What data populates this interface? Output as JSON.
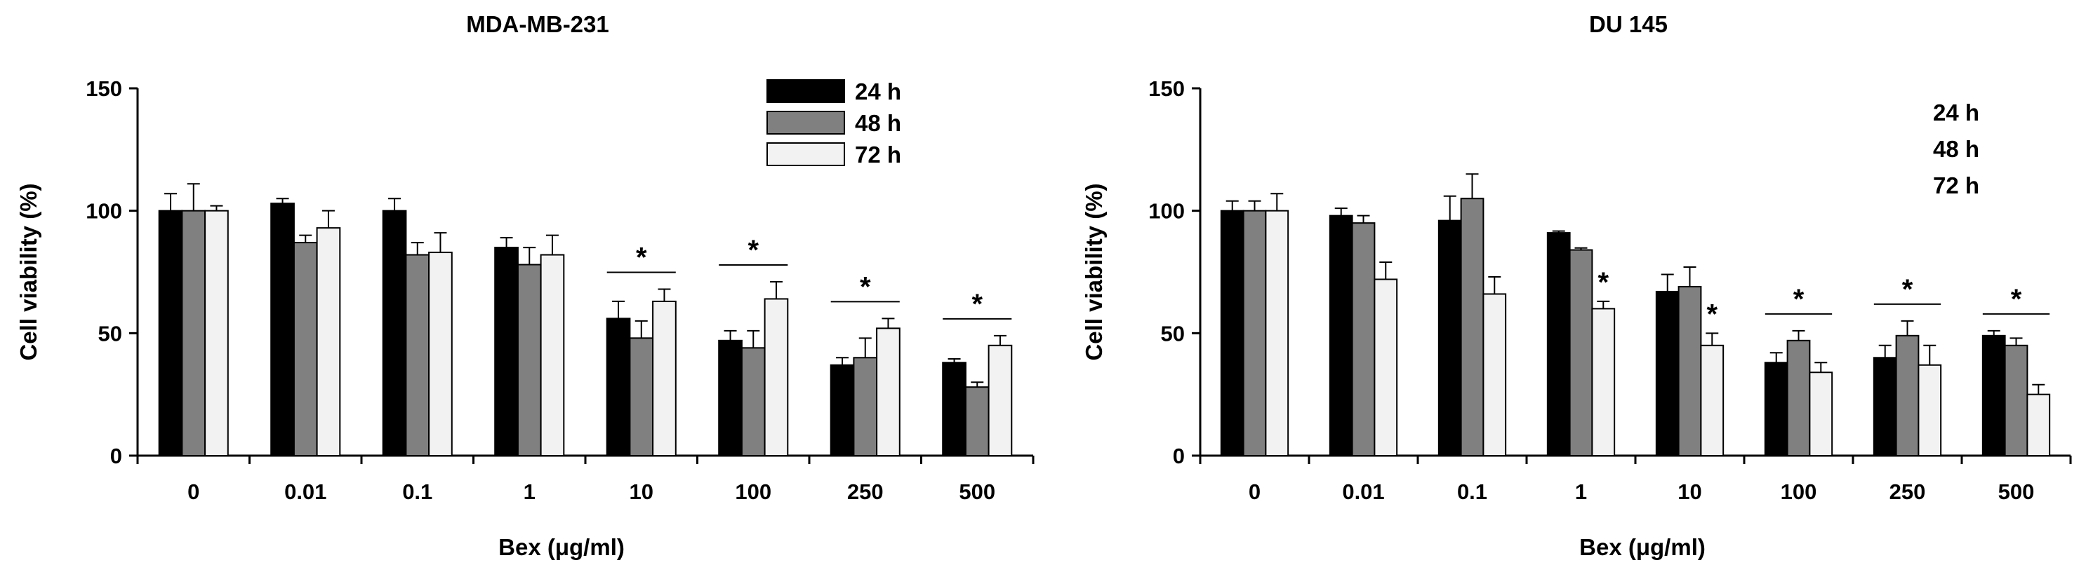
{
  "chart_data": [
    {
      "type": "bar",
      "title": "MDA-MB-231",
      "xlabel": "Bex (μg/ml)",
      "ylabel": "Cell viability (%)",
      "ylim": [
        0,
        150
      ],
      "yticks": [
        0,
        50,
        100,
        150
      ],
      "categories": [
        "0",
        "0.01",
        "0.1",
        "1",
        "10",
        "100",
        "250",
        "500"
      ],
      "legend_position": "top-right",
      "show_legend_swatches": true,
      "series": [
        {
          "name": "24 h",
          "color": "#000000",
          "values": [
            100,
            103,
            100,
            85,
            56,
            47,
            37,
            38
          ],
          "errors": [
            7,
            2,
            5,
            4,
            7,
            4,
            3,
            1.5
          ]
        },
        {
          "name": "48 h",
          "color": "#808080",
          "values": [
            100,
            87,
            82,
            78,
            48,
            44,
            40,
            28
          ],
          "errors": [
            11,
            3,
            5,
            7,
            7,
            7,
            8,
            2
          ]
        },
        {
          "name": "72 h",
          "color": "#f2f2f2",
          "values": [
            100,
            93,
            83,
            82,
            63,
            64,
            52,
            45
          ],
          "errors": [
            2,
            7,
            8,
            8,
            5,
            7,
            4,
            4
          ]
        }
      ],
      "significance": [
        {
          "categories": [
            "10"
          ],
          "label": "*",
          "style": "bracket"
        },
        {
          "categories": [
            "100"
          ],
          "label": "*",
          "style": "bracket"
        },
        {
          "categories": [
            "250"
          ],
          "label": "*",
          "style": "bracket"
        },
        {
          "categories": [
            "500"
          ],
          "label": "*",
          "style": "bracket"
        }
      ]
    },
    {
      "type": "bar",
      "title": "DU 145",
      "xlabel": "Bex (μg/ml)",
      "ylabel": "Cell viability (%)",
      "ylim": [
        0,
        150
      ],
      "yticks": [
        0,
        50,
        100,
        150
      ],
      "categories": [
        "0",
        "0.01",
        "0.1",
        "1",
        "10",
        "100",
        "250",
        "500"
      ],
      "legend_position": "top-right",
      "show_legend_swatches": false,
      "series": [
        {
          "name": "24 h",
          "color": "#000000",
          "values": [
            100,
            98,
            96,
            91,
            67,
            38,
            40,
            49
          ],
          "errors": [
            4,
            3,
            10,
            0.7,
            7,
            4,
            5,
            2
          ]
        },
        {
          "name": "48 h",
          "color": "#808080",
          "values": [
            100,
            95,
            105,
            84,
            69,
            47,
            49,
            45
          ],
          "errors": [
            4,
            3,
            10,
            0.8,
            8,
            4,
            6,
            3
          ]
        },
        {
          "name": "72 h",
          "color": "#f2f2f2",
          "values": [
            100,
            72,
            66,
            60,
            45,
            34,
            37,
            25
          ],
          "errors": [
            7,
            7,
            7,
            3,
            5,
            4,
            8,
            4
          ]
        }
      ],
      "significance": [
        {
          "categories": [
            "1"
          ],
          "label": "*",
          "style": "star-on-last-series"
        },
        {
          "categories": [
            "10"
          ],
          "label": "*",
          "style": "star-on-last-series"
        },
        {
          "categories": [
            "100"
          ],
          "label": "*",
          "style": "bracket"
        },
        {
          "categories": [
            "250"
          ],
          "label": "*",
          "style": "bracket"
        },
        {
          "categories": [
            "500"
          ],
          "label": "*",
          "style": "bracket"
        }
      ]
    }
  ]
}
